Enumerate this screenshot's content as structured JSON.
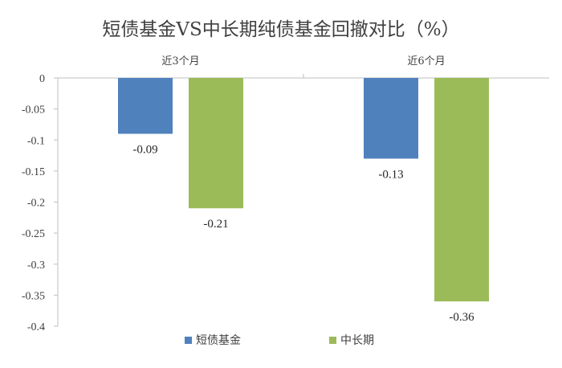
{
  "chart_data": {
    "type": "bar",
    "title": "短债基金VS中长期纯债基金回撤对比（%）",
    "categories": [
      "近3个月",
      "近6个月"
    ],
    "series": [
      {
        "name": "短债基金",
        "values": [
          -0.09,
          -0.13
        ],
        "color": "#4F81BD"
      },
      {
        "name": "中长期",
        "values": [
          -0.21,
          -0.36
        ],
        "color": "#9BBB59"
      }
    ],
    "yticks": [
      "0",
      "-0.05",
      "-0.1",
      "-0.15",
      "-0.2",
      "-0.25",
      "-0.3",
      "-0.35",
      "-0.4"
    ],
    "ylim": [
      -0.4,
      0
    ],
    "category_axis_position": "top",
    "grid": false,
    "legend_position": "bottom"
  }
}
